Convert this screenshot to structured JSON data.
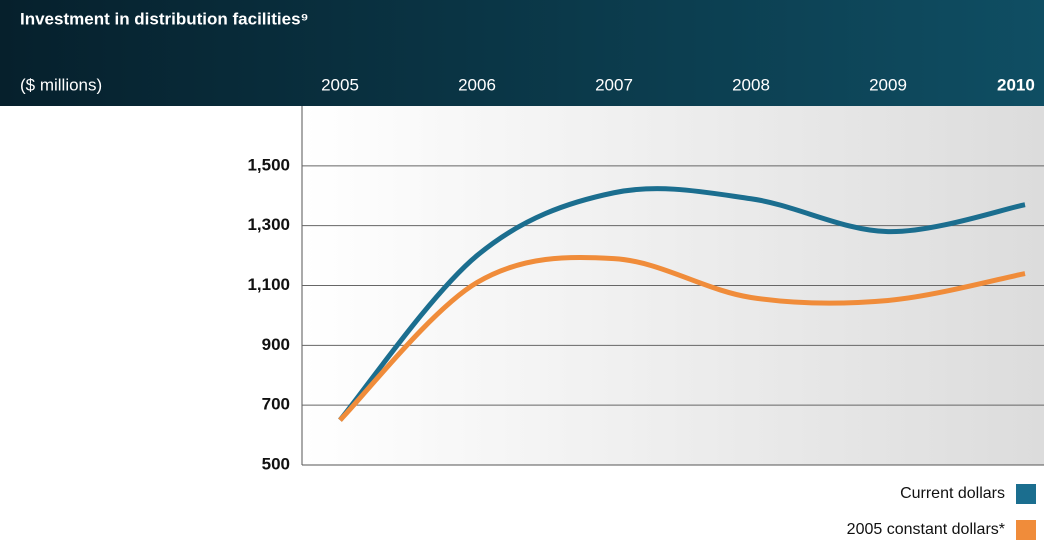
{
  "chart_data": {
    "type": "line",
    "title": "Investment in distribution facilities⁹",
    "unit_label": "($ millions)",
    "categories": [
      "2005",
      "2006",
      "2007",
      "2008",
      "2009",
      "2010"
    ],
    "series": [
      {
        "name": "Current dollars",
        "color": "#1b6e8f",
        "values": [
          650,
          1200,
          1410,
          1390,
          1280,
          1370
        ]
      },
      {
        "name": "2005 constant dollars*",
        "color": "#f08c3a",
        "values": [
          650,
          1110,
          1190,
          1060,
          1050,
          1140
        ]
      }
    ],
    "ylim": [
      500,
      1700
    ],
    "yticks": [
      500,
      700,
      900,
      {
        "value": 1100,
        "label": "1,100"
      },
      {
        "value": 1300,
        "label": "1,300"
      },
      {
        "value": 1500,
        "label": "1,500"
      }
    ],
    "grid": true,
    "legend": "bottom-right"
  }
}
